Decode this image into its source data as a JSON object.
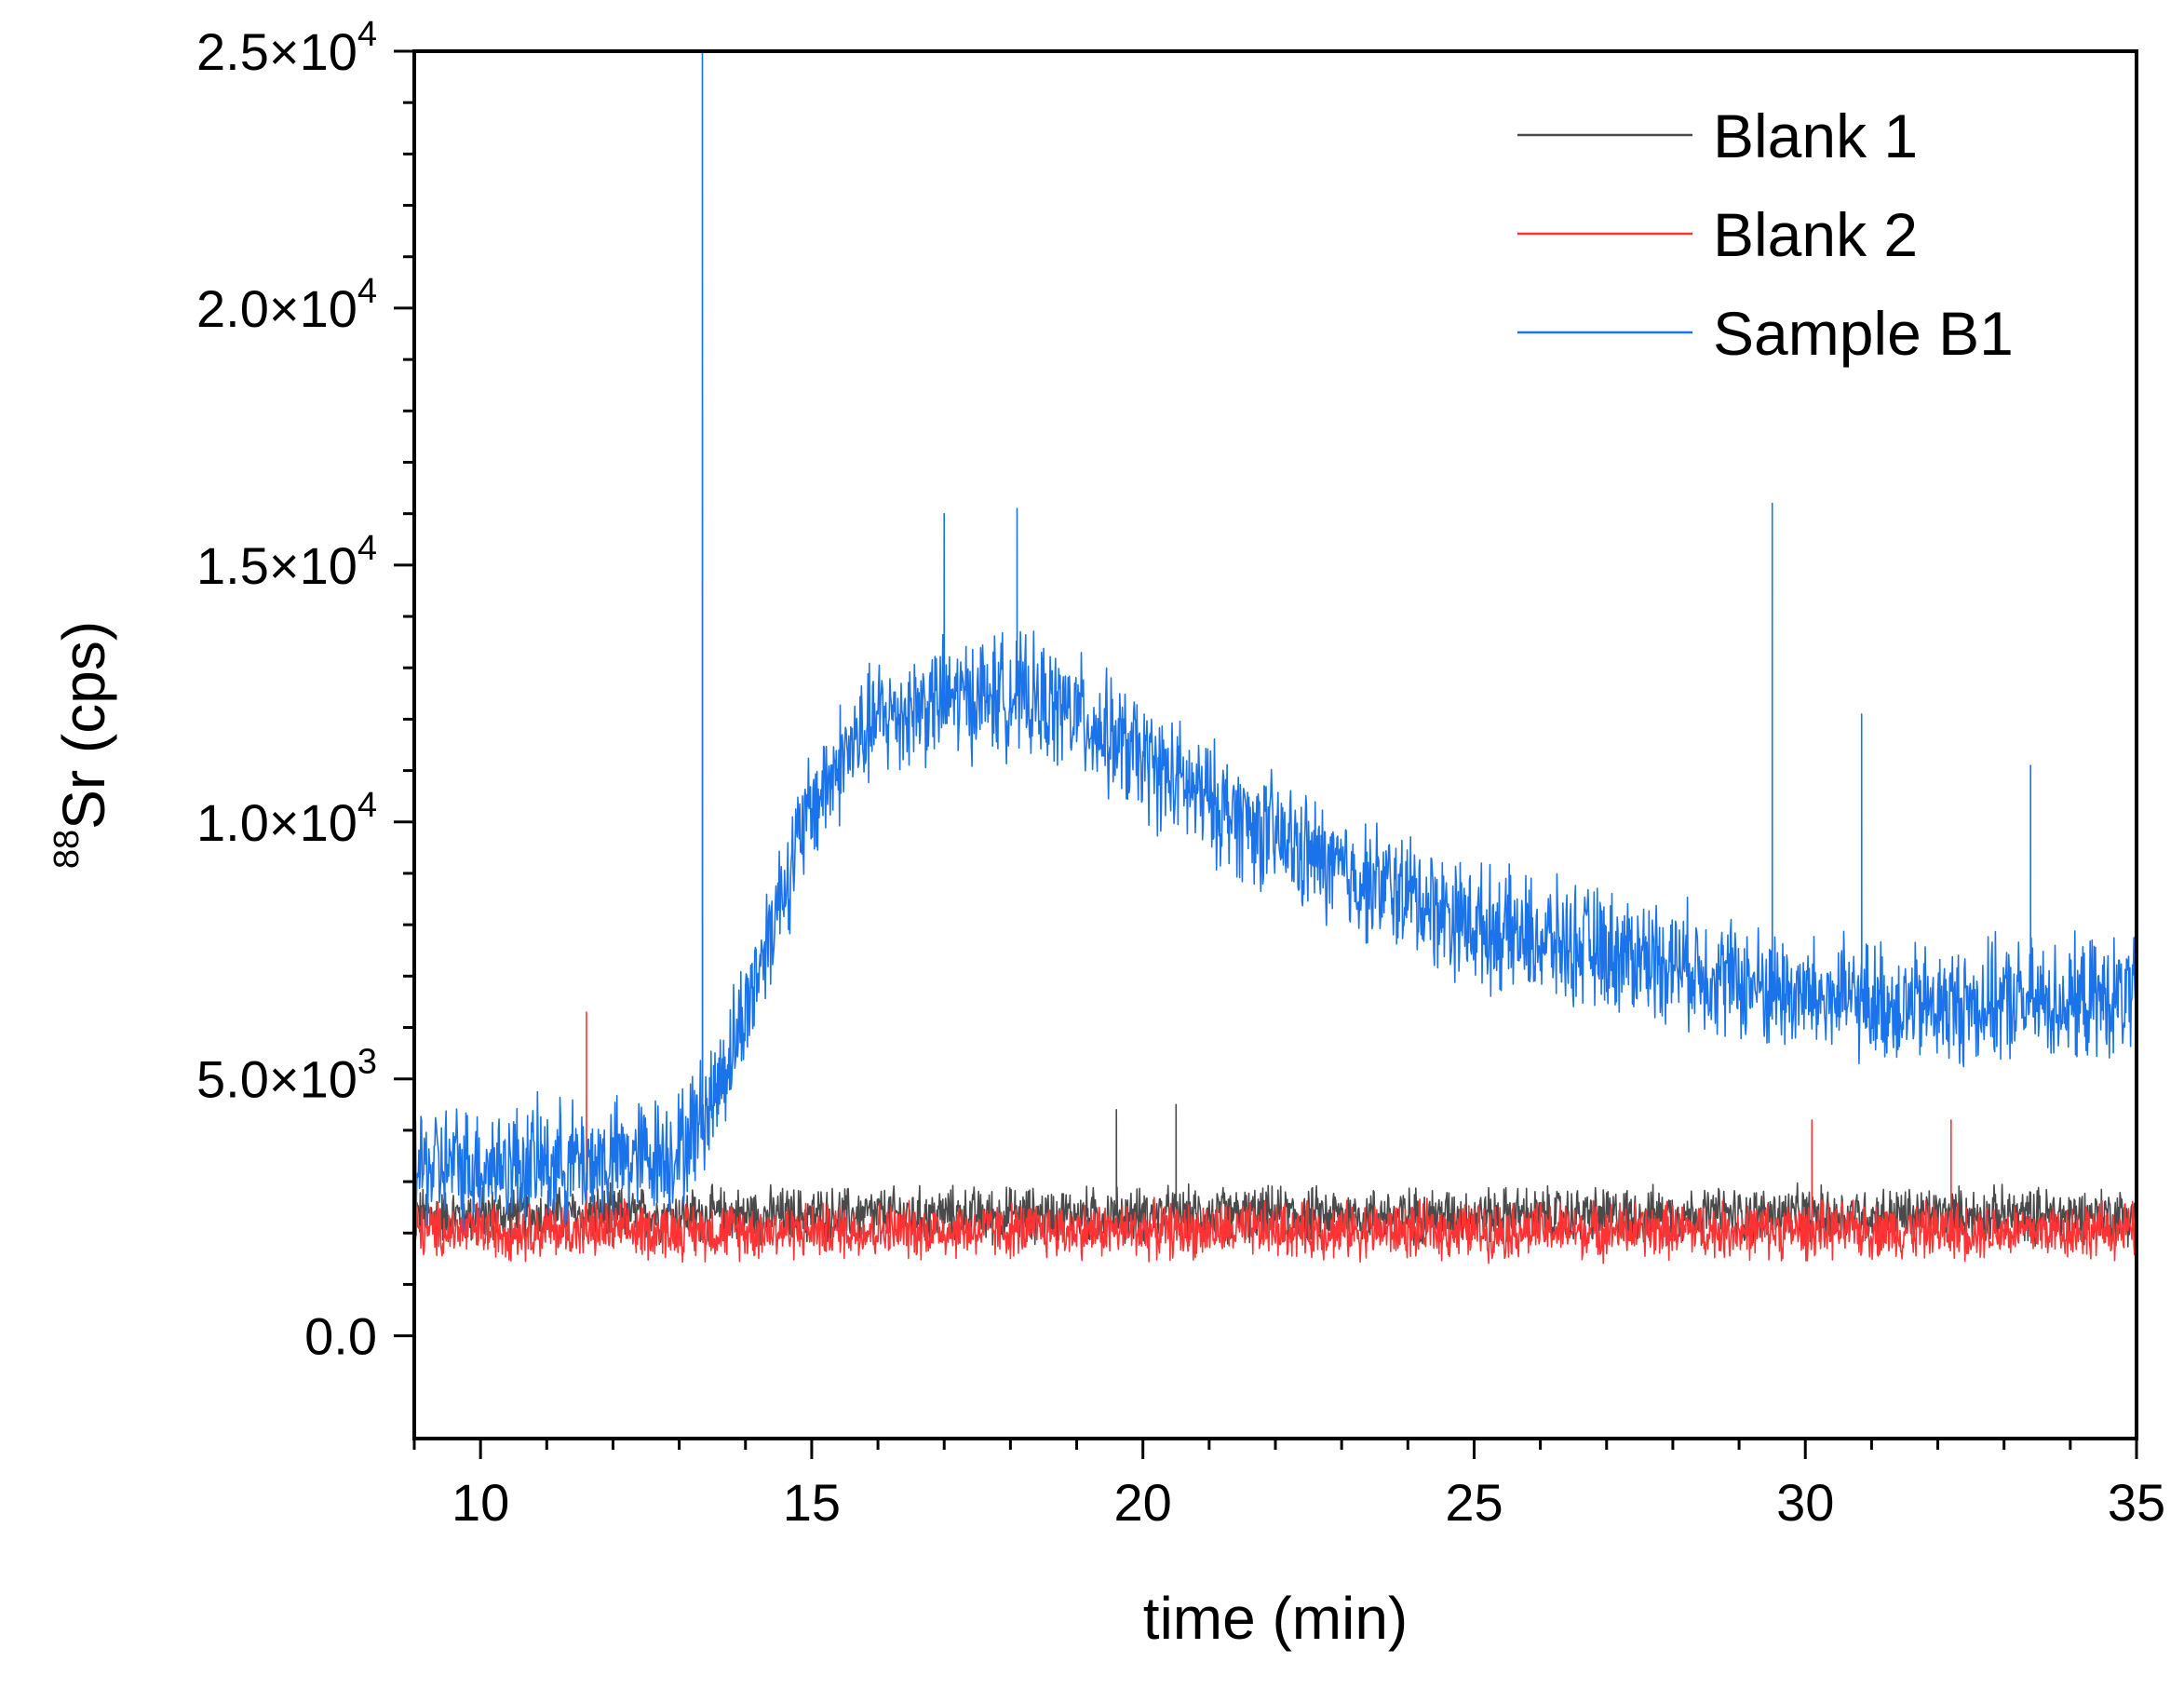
{
  "chart_data": {
    "type": "line",
    "title": "",
    "xlabel": "time (min)",
    "ylabel": {
      "isotope_mass": "88",
      "element": "Sr",
      "unit": " (cps)"
    },
    "xlim": [
      9,
      35
    ],
    "ylim": [
      -2000,
      25000
    ],
    "xticks": [
      {
        "value": 10,
        "label": "10"
      },
      {
        "value": 15,
        "label": "15"
      },
      {
        "value": 20,
        "label": "20"
      },
      {
        "value": 25,
        "label": "25"
      },
      {
        "value": 30,
        "label": "30"
      },
      {
        "value": 35,
        "label": "35"
      }
    ],
    "yticks": [
      {
        "value": 0,
        "label": "0.0"
      },
      {
        "value": 5000,
        "mantissa": "5.0×10",
        "exponent": "3"
      },
      {
        "value": 10000,
        "mantissa": "1.0×10",
        "exponent": "4"
      },
      {
        "value": 15000,
        "mantissa": "1.5×10",
        "exponent": "4"
      },
      {
        "value": 20000,
        "mantissa": "2.0×10",
        "exponent": "4"
      },
      {
        "value": 25000,
        "mantissa": "2.5×10",
        "exponent": "4"
      }
    ],
    "x_minor_step": 1,
    "y_minor_step": 1000,
    "legend_position": "top-right",
    "series": [
      {
        "name": "Blank 1",
        "color": "#4a4a4a",
        "trend": {
          "x": [
            9,
            35
          ],
          "y": [
            2350,
            2350
          ]
        },
        "noise_amplitude": 650,
        "spikes": [
          {
            "x": 20.5,
            "y": 4500
          },
          {
            "x": 19.6,
            "y": 4400
          }
        ]
      },
      {
        "name": "Blank 2",
        "color": "#ff3333",
        "trend": {
          "x": [
            9,
            35
          ],
          "y": [
            2050,
            2050
          ]
        },
        "noise_amplitude": 650,
        "spikes": [
          {
            "x": 11.6,
            "y": 6300
          },
          {
            "x": 32.2,
            "y": 4200
          },
          {
            "x": 30.1,
            "y": 4200
          }
        ]
      },
      {
        "name": "Sample B1",
        "color": "#1a73e8",
        "trend": {
          "x": [
            9,
            12,
            13,
            13.5,
            14,
            14.5,
            15,
            15.5,
            16,
            17,
            18,
            19,
            20,
            21,
            22,
            23,
            24,
            25,
            26,
            27,
            28,
            29,
            30,
            31,
            32,
            33,
            34,
            35
          ],
          "y": [
            3300,
            3400,
            3600,
            4600,
            6300,
            8500,
            10300,
            11300,
            12000,
            12400,
            12500,
            12100,
            11200,
            10400,
            9700,
            9000,
            8600,
            8000,
            7700,
            7500,
            7300,
            6900,
            6600,
            6500,
            6400,
            6500,
            6500,
            6600
          ]
        },
        "noise_amplitude": 1400,
        "spikes": [
          {
            "x": 13.35,
            "y": 25000
          },
          {
            "x": 29.5,
            "y": 16200
          },
          {
            "x": 17.0,
            "y": 16000
          },
          {
            "x": 18.1,
            "y": 16100
          },
          {
            "x": 30.85,
            "y": 12100
          },
          {
            "x": 33.4,
            "y": 11100
          }
        ]
      }
    ]
  }
}
